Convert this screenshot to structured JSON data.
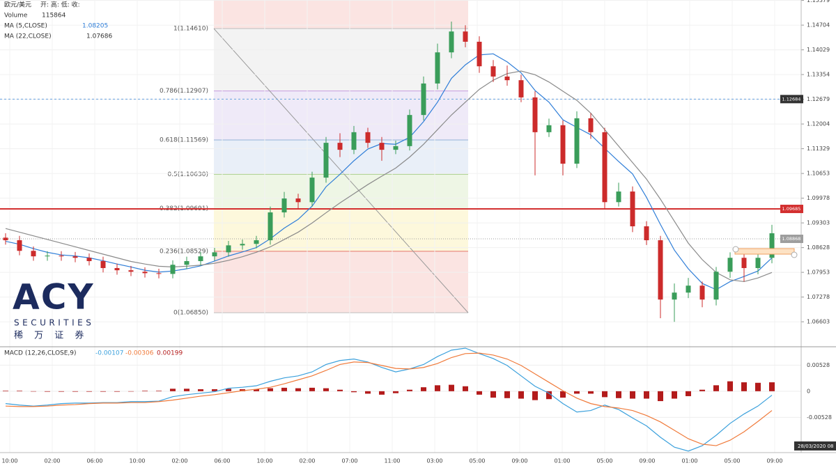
{
  "chart_data": {
    "type": "candlestick",
    "header": {
      "pair": "欧元/美元",
      "ohlc_label": "开: 高: 低: 收:",
      "volume_label": "Volume",
      "volume_value": 115864,
      "ma5_label": "MA (5,CLOSE)",
      "ma5_value": 1.08205,
      "ma22_label": "MA (22,CLOSE)",
      "ma22_value": 1.07686
    },
    "time_labels": [
      "10:00",
      "02:00",
      "06:00",
      "10:00",
      "02:00",
      "06:00",
      "10:00",
      "02:00",
      "07:00",
      "11:00",
      "03:00",
      "05:00",
      "09:00",
      "01:00",
      "05:00",
      "09:00",
      "01:00",
      "05:00",
      "09:00"
    ],
    "up_color": "#3a9d5a",
    "down_color": "#cc2b2b",
    "open": [
      1.089,
      1.0883,
      1.0854,
      1.0839,
      1.0841,
      1.0839,
      1.0835,
      1.0826,
      1.0807,
      1.0801,
      1.0797,
      1.0793,
      1.0791,
      1.0816,
      1.0826,
      1.0839,
      1.085,
      1.0869,
      1.0873,
      1.0883,
      1.0959,
      1.0997,
      1.0987,
      1.1054,
      1.1149,
      1.113,
      1.1178,
      1.1149,
      1.113,
      1.114,
      1.1225,
      1.1311,
      1.1396,
      1.1453,
      1.1425,
      1.1358,
      1.133,
      1.132,
      1.1273,
      1.1178,
      1.1197,
      1.1092,
      1.1216,
      1.1178,
      1.0987,
      1.1016,
      1.0921,
      1.0883,
      1.0721,
      1.074,
      1.0759,
      1.0721,
      1.0797,
      1.0835,
      1.0807,
      1.0835
    ],
    "high": [
      1.0902,
      1.0895,
      1.0866,
      1.0853,
      1.0853,
      1.0851,
      1.0847,
      1.0838,
      1.0819,
      1.0813,
      1.0809,
      1.0805,
      1.0828,
      1.0838,
      1.0851,
      1.0862,
      1.0881,
      1.0885,
      1.0895,
      1.0975,
      1.1015,
      1.101,
      1.107,
      1.1165,
      1.1175,
      1.1195,
      1.119,
      1.1165,
      1.1155,
      1.124,
      1.133,
      1.142,
      1.148,
      1.147,
      1.144,
      1.1375,
      1.136,
      1.1335,
      1.129,
      1.1215,
      1.121,
      1.1235,
      1.123,
      1.119,
      1.104,
      1.103,
      1.0935,
      1.0895,
      1.0765,
      1.078,
      1.077,
      1.081,
      1.085,
      1.086,
      1.085,
      1.0925
    ],
    "low": [
      1.0871,
      1.0842,
      1.0827,
      1.0827,
      1.0827,
      1.0823,
      1.0814,
      1.0795,
      1.0789,
      1.0785,
      1.0781,
      1.0779,
      1.0779,
      1.0804,
      1.0814,
      1.0827,
      1.0838,
      1.0857,
      1.0861,
      1.0871,
      1.0945,
      1.097,
      1.0975,
      1.104,
      1.111,
      1.1118,
      1.1135,
      1.11,
      1.1118,
      1.1128,
      1.121,
      1.1295,
      1.138,
      1.141,
      1.134,
      1.1315,
      1.1305,
      1.126,
      1.106,
      1.1165,
      1.106,
      1.108,
      1.116,
      1.097,
      1.0975,
      1.0905,
      1.087,
      1.067,
      1.066,
      1.0725,
      1.07,
      1.0705,
      1.078,
      1.077,
      1.079,
      1.082
    ],
    "close": [
      1.0883,
      1.0854,
      1.0839,
      1.0841,
      1.0839,
      1.0835,
      1.0826,
      1.0807,
      1.0801,
      1.0797,
      1.0793,
      1.0791,
      1.0816,
      1.0826,
      1.0839,
      1.085,
      1.0869,
      1.0873,
      1.0883,
      1.0959,
      1.0997,
      1.0987,
      1.1054,
      1.1149,
      1.113,
      1.1178,
      1.1149,
      1.113,
      1.114,
      1.1225,
      1.1311,
      1.1396,
      1.1453,
      1.1425,
      1.1358,
      1.133,
      1.132,
      1.1273,
      1.1178,
      1.1197,
      1.1092,
      1.1216,
      1.1178,
      1.0987,
      1.1016,
      1.0921,
      1.0883,
      1.0721,
      1.074,
      1.0759,
      1.0721,
      1.0797,
      1.0835,
      1.0807,
      1.0835,
      1.0902
    ],
    "ma": [
      {
        "color": "#2f7ed8",
        "values": [
          1.088,
          1.0872,
          1.086,
          1.085,
          1.0843,
          1.084,
          1.0835,
          1.0827,
          1.0818,
          1.081,
          1.0801,
          1.0796,
          1.0799,
          1.0805,
          1.0813,
          1.0826,
          1.084,
          1.0851,
          1.0863,
          1.0887,
          1.0916,
          1.094,
          1.0976,
          1.1029,
          1.1063,
          1.11,
          1.1132,
          1.1147,
          1.1145,
          1.1164,
          1.1207,
          1.126,
          1.1325,
          1.1362,
          1.1389,
          1.1392,
          1.137,
          1.134,
          1.1292,
          1.126,
          1.1212,
          1.1191,
          1.1171,
          1.1134,
          1.1098,
          1.1064,
          1.1,
          1.0926,
          1.0856,
          1.0805,
          1.0765,
          1.0748,
          1.077,
          1.0784,
          1.0799,
          1.0835
        ]
      },
      {
        "color": "#8a8a8a",
        "values": [
          1.0915,
          1.0905,
          1.0895,
          1.0885,
          1.0875,
          1.0865,
          1.0855,
          1.0845,
          1.0835,
          1.0825,
          1.0818,
          1.0812,
          1.081,
          1.0812,
          1.0815,
          1.082,
          1.0828,
          1.0838,
          1.085,
          1.0865,
          1.0885,
          1.0905,
          1.093,
          1.0958,
          1.0985,
          1.101,
          1.1035,
          1.1058,
          1.108,
          1.111,
          1.1145,
          1.1185,
          1.1225,
          1.126,
          1.1295,
          1.132,
          1.1338,
          1.1345,
          1.1335,
          1.1315,
          1.129,
          1.1265,
          1.123,
          1.1185,
          1.114,
          1.1095,
          1.105,
          1.0995,
          1.0935,
          1.0875,
          1.083,
          1.0795,
          1.0775,
          1.077,
          1.078,
          1.0795
        ]
      }
    ],
    "ylim": [
      1.0594,
      1.1539
    ],
    "yticks": [
      1.15379,
      1.14704,
      1.14029,
      1.13354,
      1.12679,
      1.12004,
      1.11329,
      1.10653,
      1.09978,
      1.09303,
      1.08628,
      1.07953,
      1.07278,
      1.06603
    ],
    "fib_top_color": "#fbe4e2",
    "fib_levels": [
      {
        "value": 1.1461,
        "label": "1(1.14610)",
        "color": "#bdbdbd",
        "band_color": "#f3f3f3"
      },
      {
        "value": 1.12907,
        "label": "0.786(1.12907)",
        "color": "#c79be0",
        "band_color": "#efeaf8"
      },
      {
        "value": 1.11569,
        "label": "0.618(1.11569)",
        "color": "#93b3d8",
        "band_color": "#e9eff8"
      },
      {
        "value": 1.1063,
        "label": "0.5(1.10630)",
        "color": "#a9cf8c",
        "band_color": "#eef6e5"
      },
      {
        "value": 1.09691,
        "label": "0.382(1.09691)",
        "color": "#e8c35a",
        "band_color": "#fdf8dc"
      },
      {
        "value": 1.08529,
        "label": "0.236(1.08529)",
        "color": "#e57368",
        "band_color": "#fbe4e2"
      },
      {
        "value": 1.0685,
        "label": "0(1.06850)",
        "color": "#bdbdbd",
        "band_color": null
      }
    ],
    "hlines": [
      {
        "value": 1.09685,
        "color": "#d32f2f",
        "tag_color": "#d32f2f",
        "style": "solid"
      },
      {
        "value": 1.08868,
        "color": "#9e9e9e",
        "tag_color": "#9e9e9e",
        "style": "dotted"
      },
      {
        "value": 1.12684,
        "color": "#64a0e0",
        "tag_color": "#333333",
        "style": "dashed"
      }
    ],
    "macd": {
      "label": "MACD (12,26,CLOSE,9)",
      "macd_value": -0.00107,
      "signal_value": -0.00306,
      "hist_value": 0.00199,
      "macd_color": "#3aa0dc",
      "signal_color": "#f07a3a",
      "hist_color": "#b31b1b",
      "ylim": [
        -0.0124,
        0.0087
      ],
      "yticks": [
        0.00528,
        0,
        -0.00528
      ],
      "macd": [
        -0.0025,
        -0.0028,
        -0.003,
        -0.0028,
        -0.0025,
        -0.0024,
        -0.0024,
        -0.0023,
        -0.0023,
        -0.0021,
        -0.0021,
        -0.002,
        -0.0011,
        -0.0007,
        -0.0004,
        -0.0001,
        0.0006,
        0.0008,
        0.0011,
        0.002,
        0.0027,
        0.0031,
        0.0039,
        0.0054,
        0.0062,
        0.0065,
        0.0059,
        0.0048,
        0.0039,
        0.0045,
        0.0054,
        0.007,
        0.0083,
        0.0087,
        0.0076,
        0.0066,
        0.0052,
        0.0031,
        0.001,
        -0.0004,
        -0.0025,
        -0.0042,
        -0.0039,
        -0.0028,
        -0.0037,
        -0.0054,
        -0.007,
        -0.0093,
        -0.0113,
        -0.0121,
        -0.011,
        -0.0089,
        -0.0065,
        -0.0046,
        -0.003,
        -0.0008
      ],
      "signal": [
        -0.003,
        -0.0031,
        -0.0031,
        -0.003,
        -0.0028,
        -0.0027,
        -0.0025,
        -0.0024,
        -0.0024,
        -0.0023,
        -0.0023,
        -0.0021,
        -0.0018,
        -0.0014,
        -0.001,
        -0.0007,
        -0.0003,
        0.0001,
        0.0004,
        0.0008,
        0.0015,
        0.0023,
        0.0031,
        0.0042,
        0.0054,
        0.0059,
        0.0058,
        0.0052,
        0.0046,
        0.0045,
        0.0048,
        0.0056,
        0.0068,
        0.0076,
        0.0077,
        0.0073,
        0.0065,
        0.0052,
        0.0035,
        0.0018,
        0.0001,
        -0.0014,
        -0.0025,
        -0.0031,
        -0.0034,
        -0.0039,
        -0.0049,
        -0.0062,
        -0.0079,
        -0.0096,
        -0.0107,
        -0.011,
        -0.0099,
        -0.0082,
        -0.0061,
        -0.0039
      ],
      "hist": [
        0.0001,
        0.0001,
        0.0,
        -0.0001,
        -0.0001,
        -0.0001,
        -0.0001,
        -0.0001,
        -0.0001,
        0.0,
        0.0001,
        0.0001,
        0.0005,
        0.0005,
        0.0004,
        0.0004,
        0.0005,
        0.0004,
        0.0004,
        0.0006,
        0.0007,
        0.0006,
        0.0007,
        0.0006,
        0.0003,
        -0.0002,
        -0.0005,
        -0.0007,
        -0.0004,
        0.0003,
        0.0008,
        0.0012,
        0.0013,
        0.001,
        -0.0007,
        -0.0013,
        -0.0014,
        -0.0015,
        -0.0018,
        -0.0016,
        -0.0013,
        -0.0005,
        -0.0005,
        -0.0012,
        -0.0014,
        -0.0015,
        -0.0015,
        -0.002,
        -0.0015,
        -0.001,
        0.0003,
        0.0012,
        0.002,
        0.0018,
        0.0017,
        0.0018
      ]
    },
    "date_label": "28/03/2020 08"
  },
  "logo": {
    "name": "ACY",
    "sub": "SECURITIES",
    "cn": "稀 万 证 券"
  }
}
